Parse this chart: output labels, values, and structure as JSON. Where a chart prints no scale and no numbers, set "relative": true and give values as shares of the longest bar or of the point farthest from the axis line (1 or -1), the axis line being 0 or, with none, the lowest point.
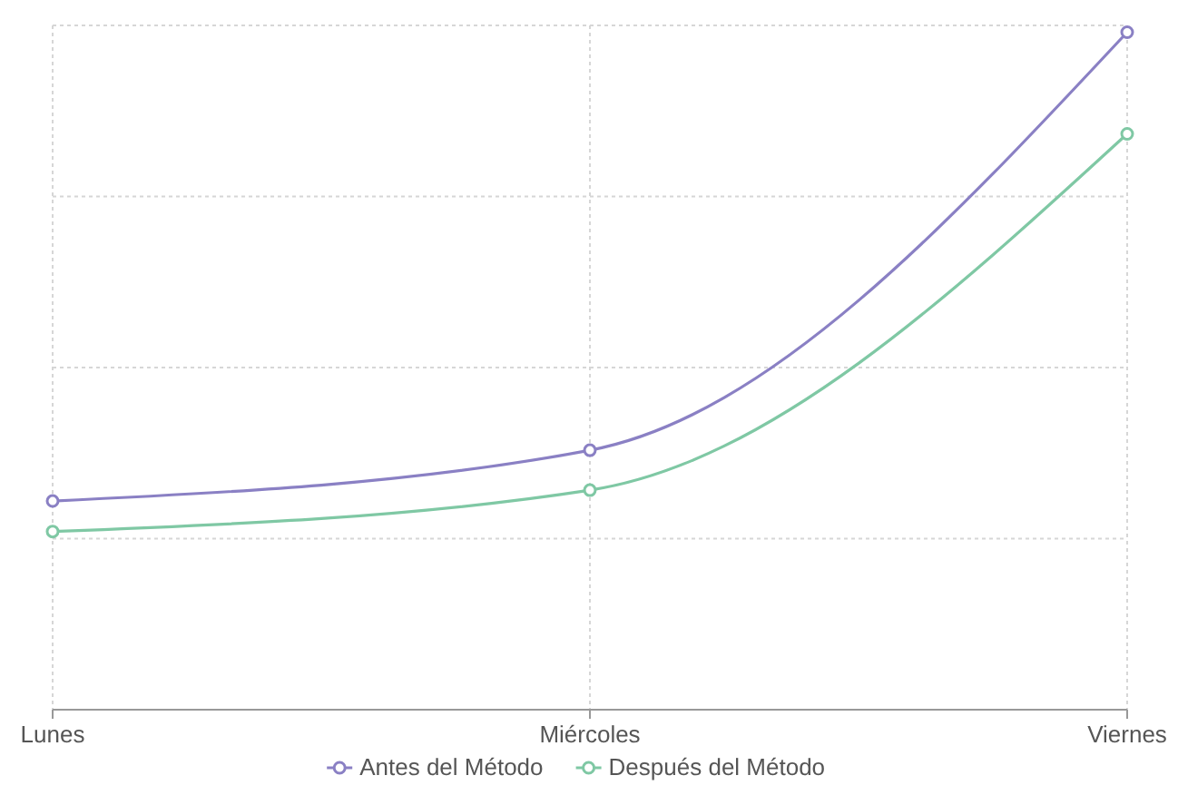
{
  "chart_data": {
    "type": "line",
    "relative": true,
    "categories": [
      "Lunes",
      "Miércoles",
      "Viernes"
    ],
    "series": [
      {
        "name": "Antes del Método",
        "color": "#8a80c4",
        "values": [
          0.308,
          0.383,
          1
        ]
      },
      {
        "name": "Después del Método",
        "color": "#7fc8a4",
        "values": [
          0.263,
          0.324,
          0.85
        ]
      }
    ],
    "grid": true,
    "legend": "bottom",
    "marker": "circle",
    "line_style": "solid"
  }
}
